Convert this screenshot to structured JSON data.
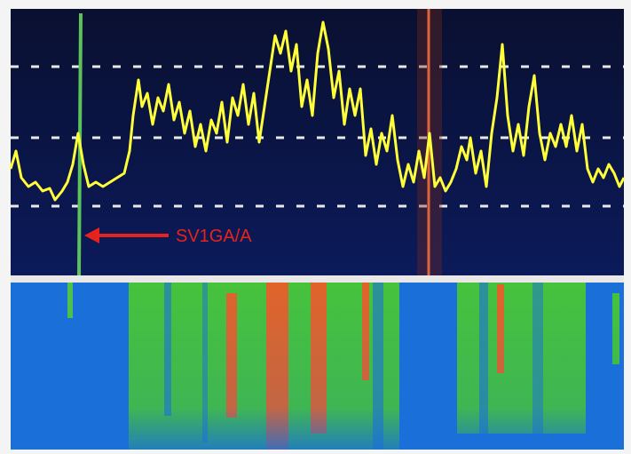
{
  "annotation": "SV1GA/A"
}
